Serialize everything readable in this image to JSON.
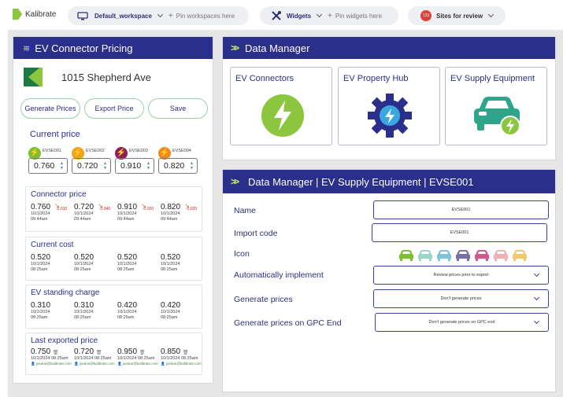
{
  "topbar": {
    "logo_text": "Kalibrate",
    "workspace_label": "Default_workspace",
    "pin_workspaces": "Pin workspaces here",
    "widgets_label": "Widgets",
    "pin_widgets": "Pin widgets here",
    "sites_badge": "123",
    "sites_label": "Sites for review"
  },
  "pricing": {
    "title": "EV Connector Pricing",
    "address": "1015 Shepherd Ave",
    "buttons": [
      "Generate Prices",
      "Export Price",
      "Save"
    ],
    "current_price": {
      "title": "Current price",
      "connectors": [
        {
          "name": "EVSE001",
          "value": "0.760",
          "color": "#7cbf2f"
        },
        {
          "name": "EVSE002",
          "value": "0.720",
          "color": "#f4a21c"
        },
        {
          "name": "EVSE003",
          "value": "0.910",
          "color": "#8c1f5c"
        },
        {
          "name": "EVSE004",
          "value": "0.820",
          "color": "#f08a1c"
        }
      ]
    },
    "connector_price": {
      "title": "Connector price",
      "cells": [
        {
          "value": "0.760",
          "delta": "-0.010",
          "date": "10/1/2024",
          "time": "09:44am"
        },
        {
          "value": "0.720",
          "delta": "-0.040",
          "date": "10/1/2024",
          "time": "09:44am"
        },
        {
          "value": "0.910",
          "delta": "-0.020",
          "date": "10/1/2024",
          "time": "09:44am"
        },
        {
          "value": "0.820",
          "delta": "-0.020",
          "date": "10/1/2024",
          "time": "09:44am"
        }
      ]
    },
    "current_cost": {
      "title": "Current cost",
      "cells": [
        {
          "value": "0.520",
          "date": "10/1/2024",
          "time": "08:25am"
        },
        {
          "value": "0.520",
          "date": "10/1/2024",
          "time": "08:25am"
        },
        {
          "value": "0.520",
          "date": "10/1/2024",
          "time": "08:25am"
        },
        {
          "value": "0.520",
          "date": "10/1/2024",
          "time": "08:25am"
        }
      ]
    },
    "standing_charge": {
      "title": "EV standing charge",
      "cells": [
        {
          "value": "0.310",
          "date": "10/1/2024",
          "time": "08:25am"
        },
        {
          "value": "0.310",
          "date": "10/1/2024",
          "time": "08:25am"
        },
        {
          "value": "0.420",
          "date": "10/1/2024",
          "time": "08:25am"
        },
        {
          "value": "0.420",
          "date": "10/1/2024",
          "time": "08:25am"
        }
      ]
    },
    "last_exported": {
      "title": "Last exported price",
      "cells": [
        {
          "value": "0.750",
          "date": "10/1/2024",
          "time": "08:25am",
          "user": "joedoe@kalibrate.com"
        },
        {
          "value": "0.720",
          "date": "10/1/2024",
          "time": "08:25am",
          "user": "joedoe@kalibrate.com"
        },
        {
          "value": "0.950",
          "date": "10/1/2024",
          "time": "08:25am",
          "user": "joedoe@kalibrate.com"
        },
        {
          "value": "0.850",
          "date": "10/1/2024",
          "time": "08:25am",
          "user": "joedoe@kalibrate.com"
        }
      ]
    }
  },
  "data_manager": {
    "title": "Data Manager",
    "tiles": [
      {
        "label": "EV Connectors",
        "icon": "lightning-icon"
      },
      {
        "label": "EV Property Hub",
        "icon": "gear-lightning-icon"
      },
      {
        "label": "EV Supply Equipment",
        "icon": "car-charging-icon"
      }
    ]
  },
  "detail": {
    "title": "Data Manager | EV Supply Equipment | EVSE001",
    "fields": {
      "name_label": "Name",
      "name_value": "EVSE001",
      "import_label": "Import code",
      "import_value": "EVSE001",
      "icon_label": "Icon",
      "auto_label": "Automatically implement",
      "auto_value": "Review prices prior to export",
      "generate_label": "Generate prices",
      "generate_value": "Don't generate prices",
      "gpc_label": "Generate prices on GPC End",
      "gpc_value": "Don't generate prices on GPC end"
    },
    "icon_colors": [
      "#7cbf2f",
      "#9ad6c6",
      "#7cc2d9",
      "#7a6fa6",
      "#d05a8c",
      "#f2b0b0",
      "#f3c76b"
    ]
  },
  "colors": {
    "navy": "#2b2f8c",
    "green": "#7cbf2f",
    "teal": "#2ea58a"
  }
}
